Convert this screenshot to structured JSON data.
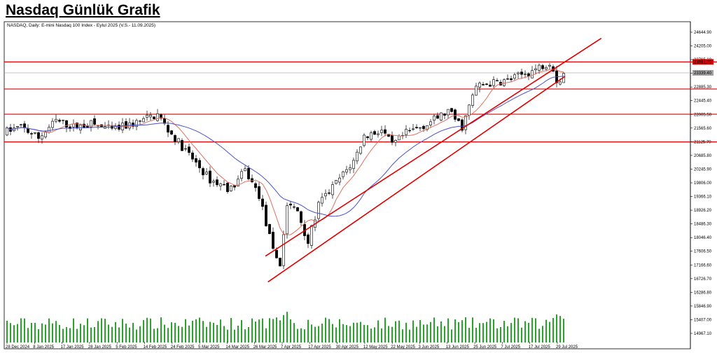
{
  "page": {
    "title": "Nasdaq Günlük Grafik"
  },
  "chart_data": {
    "type": "candlestick",
    "header": "NASDAQ, Daily:  E-mini Nasdaq 100 Index - Eylul 2025 (V.S.- 11.09.2025)",
    "y_ticks": [
      "24644.90",
      "24205.00",
      "23765.10",
      "23325.20",
      "22885.30",
      "22445.40",
      "22005.50",
      "21565.60",
      "21125.70",
      "20685.80",
      "20245.90",
      "19806.00",
      "19366.10",
      "18926.20",
      "18486.30",
      "18046.40",
      "17606.50",
      "17166.60",
      "16726.70",
      "16286.80",
      "15846.90",
      "15407.00",
      "14967.10"
    ],
    "x_ticks": [
      "28 Dec 2024",
      "8 Jan 2025",
      "17 Jan 2025",
      "28 Jan 2025",
      "5 Feb 2025",
      "14 Feb 2025",
      "24 Feb 2025",
      "5 Mar 2025",
      "14 Mar 2025",
      "26 Mar 2025",
      "7 Apr 2025",
      "17 Apr 2025",
      "30 Apr 2025",
      "12 May 2025",
      "22 May 2025",
      "3 Jun 2025",
      "13 Jun 2025",
      "25 Jun 2025",
      "7 Jul 2025",
      "17 Jul 2025",
      "29 Jul 2025"
    ],
    "ylim": [
      14967.1,
      24644.9
    ],
    "price_labels": [
      "23691.70",
      "23339.40"
    ],
    "horizontal_levels": [
      23691.7,
      22820,
      22010,
      21120
    ],
    "channel_upper": {
      "from": {
        "x": "7 Apr 2025",
        "y": 17450
      },
      "to": {
        "x": "15 Aug 2025",
        "y": 24450
      }
    },
    "channel_lower": {
      "from": {
        "x": "8 Apr 2025",
        "y": 16620
      },
      "to": {
        "x": "1 Aug 2025",
        "y": 23230
      }
    },
    "series": [
      {
        "name": "MA short",
        "color": "#e07060"
      },
      {
        "name": "MA long",
        "color": "#4a52c8"
      }
    ],
    "colors": {
      "level": "#e00000",
      "channel": "#e00000",
      "volume": "#2aa32a",
      "grid": "#b0b0b0",
      "price_tag_bg": "#e00000",
      "price_tag_gray": "#a0a0a0"
    }
  }
}
